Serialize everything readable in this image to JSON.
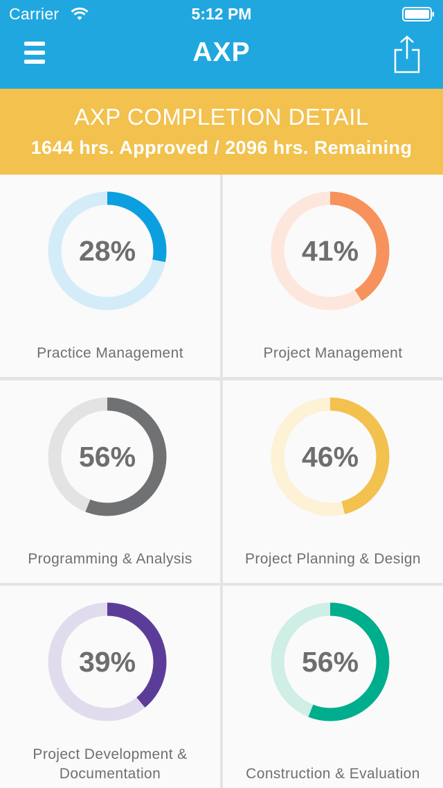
{
  "status_bar": {
    "carrier": "Carrier",
    "time": "5:12 PM"
  },
  "nav": {
    "title": "AXP",
    "menu_icon": "hamburger-menu-icon",
    "share_icon": "share-icon"
  },
  "banner": {
    "title": "AXP COMPLETION DETAIL",
    "subtitle": "1644 hrs. Approved / 2096 hrs. Remaining"
  },
  "categories": [
    {
      "label": "Practice Management",
      "percent_text": "28%",
      "progress": 0.28,
      "color": "#0b9fe0",
      "track": "#d3ecf8"
    },
    {
      "label": "Project Management",
      "percent_text": "41%",
      "progress": 0.41,
      "color": "#f7925c",
      "track": "#fde6dc"
    },
    {
      "label": "Programming & Analysis",
      "percent_text": "56%",
      "progress": 0.56,
      "color": "#707172",
      "track": "#e3e3e3"
    },
    {
      "label": "Project Planning & Design",
      "percent_text": "46%",
      "progress": 0.46,
      "color": "#f2c14e",
      "track": "#fdf1d6"
    },
    {
      "label_line1": "Project Development &",
      "label_line2": "Documentation",
      "percent_text": "39%",
      "progress": 0.39,
      "color": "#5b3d99",
      "track": "#e1dced"
    },
    {
      "label": "Construction & Evaluation",
      "percent_text": "56%",
      "progress": 0.56,
      "color": "#00ad8c",
      "track": "#ceeee6"
    }
  ]
}
